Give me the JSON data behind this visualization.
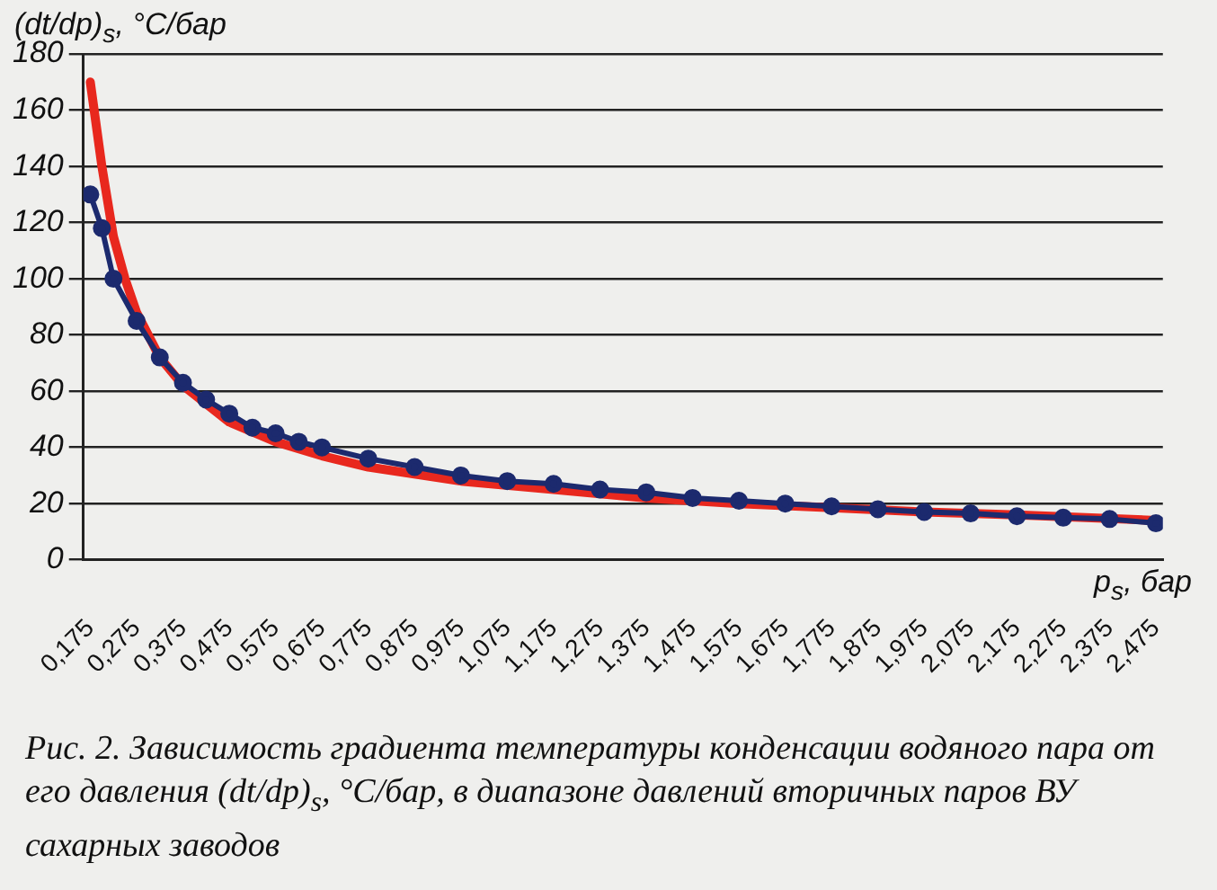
{
  "chart_data": {
    "type": "line",
    "ylabel": "(dt/dp)$_{s}$, °C/бар",
    "xlabel": "p$_{s}$, бар",
    "annotations": [
      "Рис. 2. Зависимость градиента температуры конденсации водяного пара от его давления (dt/dp)$_{s}$, °C/бар, в диапазоне давлений вторичных паров ВУ сахарных заводов"
    ],
    "xlim": [
      0.16,
      2.49
    ],
    "ylim": [
      0,
      180
    ],
    "yticks": [
      0,
      20,
      40,
      60,
      80,
      100,
      120,
      140,
      160,
      180
    ],
    "xticks": [
      {
        "value": 0.175,
        "label": "0,175"
      },
      {
        "value": 0.275,
        "label": "0,275"
      },
      {
        "value": 0.375,
        "label": "0,375"
      },
      {
        "value": 0.475,
        "label": "0,475"
      },
      {
        "value": 0.575,
        "label": "0,575"
      },
      {
        "value": 0.675,
        "label": "0,675"
      },
      {
        "value": 0.775,
        "label": "0,775"
      },
      {
        "value": 0.875,
        "label": "0,875"
      },
      {
        "value": 0.975,
        "label": "0,975"
      },
      {
        "value": 1.075,
        "label": "1,075"
      },
      {
        "value": 1.175,
        "label": "1,175"
      },
      {
        "value": 1.275,
        "label": "1,275"
      },
      {
        "value": 1.375,
        "label": "1,375"
      },
      {
        "value": 1.475,
        "label": "1,475"
      },
      {
        "value": 1.575,
        "label": "1,575"
      },
      {
        "value": 1.675,
        "label": "1,675"
      },
      {
        "value": 1.775,
        "label": "1,775"
      },
      {
        "value": 1.875,
        "label": "1,875"
      },
      {
        "value": 1.975,
        "label": "1,975"
      },
      {
        "value": 2.075,
        "label": "2,075"
      },
      {
        "value": 2.175,
        "label": "2,175"
      },
      {
        "value": 2.275,
        "label": "2,275"
      },
      {
        "value": 2.375,
        "label": "2,375"
      },
      {
        "value": 2.475,
        "label": "2,475"
      }
    ],
    "grid": "y",
    "legend": false,
    "series": [
      {
        "type": "line",
        "color": "#1c2a6e",
        "marker": "circle",
        "x": [
          0.175,
          0.2,
          0.225,
          0.275,
          0.325,
          0.375,
          0.425,
          0.475,
          0.525,
          0.575,
          0.625,
          0.675,
          0.775,
          0.875,
          0.975,
          1.075,
          1.175,
          1.275,
          1.375,
          1.475,
          1.575,
          1.675,
          1.775,
          1.875,
          1.975,
          2.075,
          2.175,
          2.275,
          2.375,
          2.475
        ],
        "values": [
          130,
          118,
          100,
          85,
          72,
          63,
          57,
          52,
          47,
          45,
          42,
          40,
          36,
          33,
          30,
          28,
          27,
          25,
          24,
          22,
          21,
          20,
          19,
          18,
          17,
          16.5,
          15.5,
          15,
          14.5,
          13
        ]
      },
      {
        "type": "line",
        "color": "#e8281e",
        "marker": "none",
        "x": [
          0.175,
          0.2,
          0.225,
          0.25,
          0.275,
          0.325,
          0.375,
          0.475,
          0.575,
          0.675,
          0.775,
          0.975,
          1.175,
          1.375,
          1.575,
          1.775,
          1.975,
          2.175,
          2.475
        ],
        "values": [
          170,
          140,
          115,
          100,
          88,
          72,
          62,
          49,
          42,
          37,
          33,
          28,
          25,
          22,
          20,
          18.5,
          17,
          16,
          14
        ]
      }
    ]
  }
}
